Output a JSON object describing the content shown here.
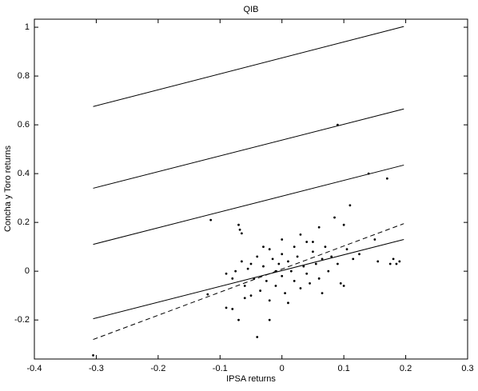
{
  "chart_data": {
    "type": "scatter",
    "title": "QIB",
    "x_label": "IPSA returns",
    "y_label": "Concha y Toro returns",
    "xlim": [
      -0.4,
      0.3
    ],
    "ylim": [
      -0.36,
      1.033
    ],
    "xticks": [
      -0.4,
      -0.3,
      -0.2,
      -0.1,
      0,
      0.1,
      0.2,
      0.3
    ],
    "yticks": [
      -0.2,
      0,
      0.2,
      0.4,
      0.6,
      0.8,
      1
    ],
    "series": [
      {
        "type": "line",
        "color": "#000000",
        "dashed": false,
        "x": [
          -0.305,
          0.197
        ],
        "values": [
          0.675,
          1.003
        ]
      },
      {
        "type": "line",
        "color": "#000000",
        "dashed": false,
        "x": [
          -0.305,
          0.197
        ],
        "values": [
          0.34,
          0.665
        ]
      },
      {
        "type": "line",
        "color": "#000000",
        "dashed": false,
        "x": [
          -0.305,
          0.197
        ],
        "values": [
          0.11,
          0.435
        ]
      },
      {
        "type": "line",
        "color": "#000000",
        "dashed": false,
        "x": [
          -0.305,
          0.197
        ],
        "values": [
          -0.195,
          0.13
        ]
      },
      {
        "type": "line",
        "color": "#000000",
        "dashed": true,
        "x": [
          -0.305,
          0.197
        ],
        "values": [
          -0.28,
          0.195
        ]
      },
      {
        "type": "scatter",
        "color": "#000000",
        "x": [
          -0.305,
          -0.12,
          -0.115,
          -0.09,
          -0.09,
          -0.08,
          -0.08,
          -0.07,
          -0.07,
          -0.068,
          -0.065,
          -0.065,
          -0.06,
          -0.055,
          -0.05,
          -0.05,
          -0.045,
          -0.04,
          -0.04,
          -0.035,
          -0.03,
          -0.03,
          -0.025,
          -0.02,
          -0.02,
          -0.015,
          -0.01,
          -0.01,
          -0.005,
          0.0,
          0.0,
          0.005,
          0.01,
          0.01,
          0.015,
          0.02,
          0.02,
          0.025,
          0.03,
          0.03,
          0.035,
          0.04,
          0.04,
          0.045,
          0.05,
          0.055,
          0.06,
          0.06,
          0.065,
          0.07,
          0.075,
          0.08,
          0.085,
          0.09,
          0.09,
          0.095,
          0.1,
          0.105,
          0.11,
          0.115,
          0.125,
          0.14,
          0.15,
          0.155,
          0.17,
          0.175,
          0.18,
          0.185,
          0.19,
          -0.075,
          -0.06,
          -0.02,
          0.0,
          0.05,
          0.065,
          0.1
        ],
        "values": [
          -0.345,
          -0.095,
          0.21,
          -0.01,
          -0.15,
          -0.155,
          -0.03,
          -0.2,
          0.19,
          0.17,
          0.155,
          0.04,
          -0.06,
          0.01,
          -0.1,
          0.03,
          -0.03,
          -0.27,
          0.06,
          -0.08,
          0.1,
          0.02,
          -0.04,
          0.09,
          -0.12,
          0.05,
          0.0,
          -0.06,
          0.03,
          -0.02,
          0.07,
          -0.09,
          0.04,
          -0.13,
          0.0,
          0.1,
          -0.04,
          0.06,
          -0.07,
          0.15,
          0.02,
          0.12,
          -0.01,
          -0.05,
          0.08,
          0.03,
          0.18,
          -0.03,
          0.05,
          0.1,
          0.0,
          0.06,
          0.22,
          0.6,
          0.03,
          -0.05,
          0.19,
          0.09,
          0.27,
          0.05,
          0.07,
          0.4,
          0.13,
          0.04,
          0.38,
          0.03,
          0.05,
          0.03,
          0.04,
          0.0,
          -0.11,
          -0.2,
          0.13,
          0.12,
          -0.09,
          -0.06
        ]
      }
    ]
  }
}
